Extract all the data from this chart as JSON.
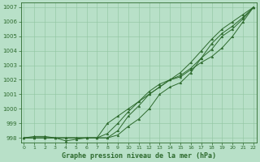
{
  "x": [
    0,
    1,
    2,
    3,
    4,
    5,
    6,
    7,
    8,
    9,
    10,
    11,
    12,
    13,
    14,
    15,
    16,
    17,
    18,
    19,
    20,
    21,
    22
  ],
  "line1": [
    998.0,
    998.0,
    998.0,
    998.0,
    998.0,
    998.0,
    998.0,
    998.0,
    999.0,
    999.5,
    1000.0,
    1000.5,
    1001.0,
    1001.5,
    1002.0,
    1002.2,
    1002.7,
    1003.2,
    1003.6,
    1004.2,
    1005.0,
    1006.0,
    1007.0
  ],
  "line2": [
    998.0,
    998.0,
    998.0,
    998.0,
    997.8,
    997.9,
    998.0,
    998.0,
    998.3,
    999.0,
    999.8,
    1000.5,
    1001.2,
    1001.7,
    1002.0,
    1002.3,
    1002.8,
    1003.5,
    1004.1,
    1005.0,
    1005.5,
    1006.2,
    1007.0
  ],
  "line3": [
    998.0,
    998.0,
    998.0,
    998.0,
    998.0,
    998.0,
    998.0,
    998.0,
    998.0,
    998.2,
    998.8,
    999.3,
    1000.0,
    1001.0,
    1001.5,
    1001.8,
    1002.5,
    1003.5,
    1004.5,
    1005.2,
    1005.7,
    1006.3,
    1007.0
  ],
  "line4": [
    998.0,
    998.1,
    998.1,
    998.0,
    998.0,
    998.0,
    998.0,
    998.0,
    998.0,
    998.5,
    999.5,
    1000.2,
    1001.0,
    1001.5,
    1002.0,
    1002.5,
    1003.2,
    1004.0,
    1004.8,
    1005.5,
    1006.0,
    1006.5,
    1007.0
  ],
  "line_color": "#2d6a2d",
  "bg_color": "#b8e0c8",
  "grid_color": "#90c4a0",
  "xlabel": "Graphe pression niveau de la mer (hPa)",
  "ylim": [
    997.7,
    1007.3
  ],
  "xlim": [
    -0.3,
    22.3
  ],
  "yticks": [
    998,
    999,
    1000,
    1001,
    1002,
    1003,
    1004,
    1005,
    1006,
    1007
  ],
  "xticks": [
    0,
    1,
    2,
    3,
    4,
    5,
    6,
    7,
    8,
    9,
    10,
    11,
    12,
    13,
    14,
    15,
    16,
    17,
    18,
    19,
    20,
    21,
    22
  ]
}
